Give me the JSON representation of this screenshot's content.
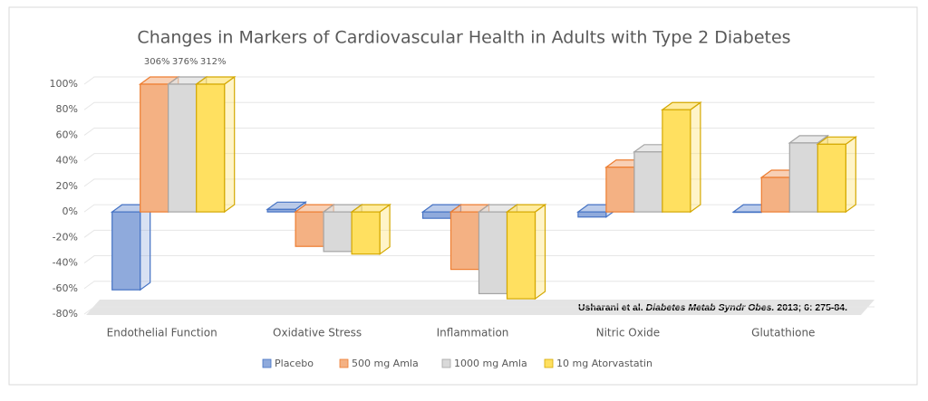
{
  "chart_data": {
    "type": "bar3d",
    "title": "Changes in Markers of Cardiovascular Health in Adults with Type 2 Diabetes",
    "categories": [
      "Endothelial Function",
      "Oxidative Stress",
      "Inflammation",
      "Nitric Oxide",
      "Glutathione"
    ],
    "series": [
      {
        "name": "Placebo",
        "color": "#8faadc",
        "stroke": "#4472c4",
        "values": [
          -61,
          2,
          -5,
          -4,
          0
        ]
      },
      {
        "name": "500 mg Amla",
        "color": "#f4b183",
        "stroke": "#ed7d31",
        "values": [
          306,
          -27,
          -45,
          35,
          27
        ],
        "value_labels": [
          "306%",
          null,
          null,
          null,
          null
        ]
      },
      {
        "name": "1000 mg Amla",
        "color": "#d9d9d9",
        "stroke": "#a5a5a5",
        "values": [
          376,
          -31,
          -64,
          47,
          54
        ],
        "value_labels": [
          "376%",
          null,
          null,
          null,
          null
        ]
      },
      {
        "name": "10 mg Atorvastatin",
        "color": "#ffe060",
        "stroke": "#d4a800",
        "values": [
          312,
          -33,
          -68,
          80,
          53
        ],
        "value_labels": [
          "312%",
          null,
          null,
          null,
          null
        ]
      }
    ],
    "ylim": [
      -80,
      100
    ],
    "yticks": [
      {
        "value": -80,
        "label": "-80%"
      },
      {
        "value": -60,
        "label": "-60%"
      },
      {
        "value": -40,
        "label": "-40%"
      },
      {
        "value": -20,
        "label": "-20%"
      },
      {
        "value": 0,
        "label": "0%"
      },
      {
        "value": 20,
        "label": "20%"
      },
      {
        "value": 40,
        "label": "40%"
      },
      {
        "value": 60,
        "label": "60%"
      },
      {
        "value": 80,
        "label": "80%"
      },
      {
        "value": 100,
        "label": "100%"
      }
    ],
    "grid": true,
    "annotation": {
      "author": "Usharani et al.",
      "journal": "Diabetes Metab Syndr Obes.",
      "citation": "2013; 6: 275-84."
    },
    "legend": "bottom"
  }
}
